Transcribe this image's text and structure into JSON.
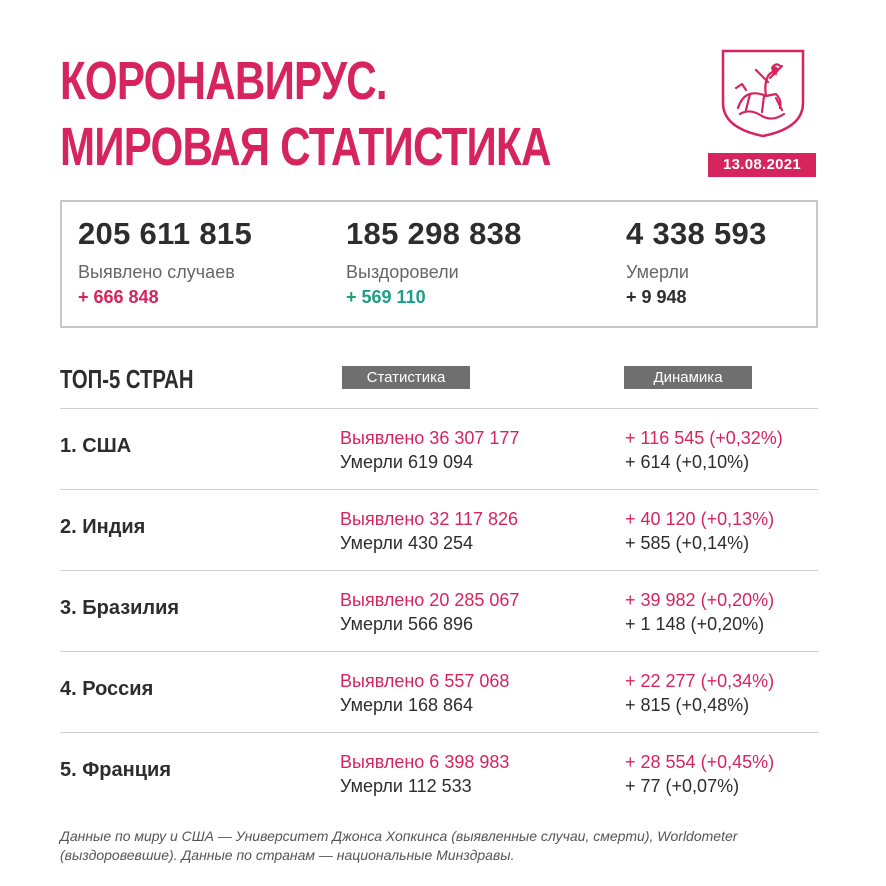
{
  "header": {
    "title_line1": "КОРОНАВИРУС.",
    "title_line2": "МИРОВАЯ СТАТИСТИКА",
    "date": "13.08.2021"
  },
  "colors": {
    "accent": "#d6245e",
    "recovered": "#1e9e84",
    "badge_gray": "#6f6f6f"
  },
  "summary": [
    {
      "value": "205 611 815",
      "label": "Выявлено случаев",
      "delta": "+ 666 848"
    },
    {
      "value": "185 298 838",
      "label": "Выздоровели",
      "delta": "+ 569 110"
    },
    {
      "value": "4 338 593",
      "label": "Умерли",
      "delta": "+ 9 948"
    }
  ],
  "table": {
    "section_title": "ТОП-5 СТРАН",
    "col_stats": "Статистика",
    "col_dynamics": "Динамика",
    "rows": [
      {
        "country": "1. США",
        "cases": "Выявлено 36 307 177",
        "deaths": "Умерли 619 094",
        "cases_delta": "+ 116 545 (+0,32%)",
        "deaths_delta": "+ 614 (+0,10%)"
      },
      {
        "country": "2. Индия",
        "cases": "Выявлено 32 117 826",
        "deaths": "Умерли 430 254",
        "cases_delta": "+ 40 120 (+0,13%)",
        "deaths_delta": "+ 585 (+0,14%)"
      },
      {
        "country": "3. Бразилия",
        "cases": "Выявлено 20 285 067",
        "deaths": "Умерли 566 896",
        "cases_delta": "+ 39 982 (+0,20%)",
        "deaths_delta": "+ 1 148 (+0,20%)"
      },
      {
        "country": "4. Россия",
        "cases": "Выявлено 6 557 068",
        "deaths": "Умерли 168 864",
        "cases_delta": "+ 22 277 (+0,34%)",
        "deaths_delta": "+ 815 (+0,48%)"
      },
      {
        "country": "5. Франция",
        "cases": "Выявлено 6 398 983",
        "deaths": "Умерли 112 533",
        "cases_delta": "+ 28 554 (+0,45%)",
        "deaths_delta": "+ 77 (+0,07%)"
      }
    ]
  },
  "footnote": "Данные по миру и США — Университет Джонса Хопкинса (выявленные случаи, смерти), Worldometer (выздоровевшие). Данные по странам — национальные Минздравы.",
  "emblem": {
    "icon": "moscow-coat-of-arms-icon"
  }
}
